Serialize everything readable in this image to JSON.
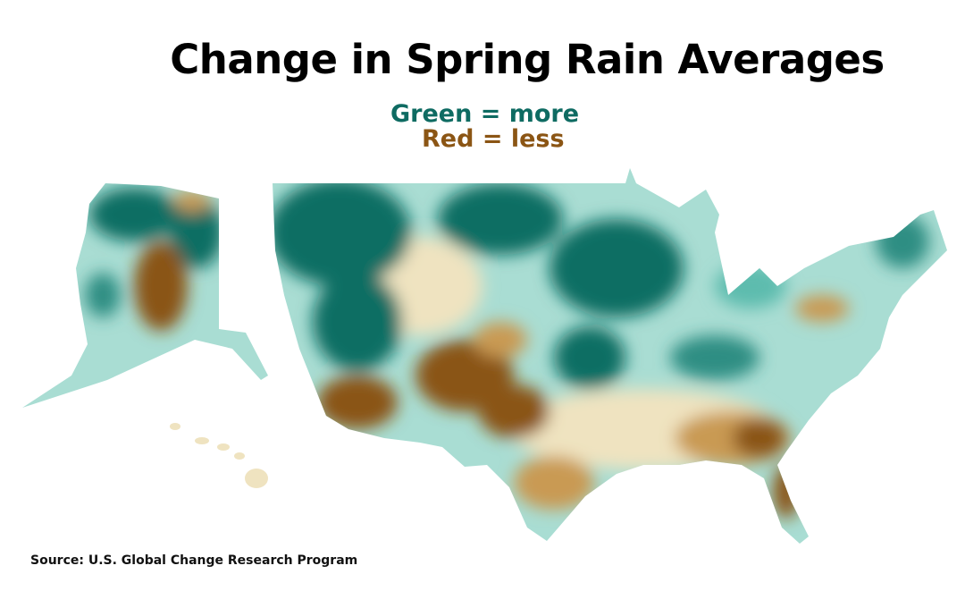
{
  "title": "Change in Spring Rain Averages",
  "legend": {
    "more": "Green = more",
    "less": "Red = less",
    "more_color": "#0e6b62",
    "less_color": "#8b5514"
  },
  "source": "Source: U.S. Global Change Research Program",
  "map": {
    "regions": [
      "Contiguous United States",
      "Alaska",
      "Hawaii"
    ],
    "colors": {
      "strong_more": "#0f6e64",
      "more": "#5dbcae",
      "slight_more": "#a9ddd3",
      "neutral": "#efe3c0",
      "less": "#c99a52",
      "strong_less": "#8a5514"
    }
  }
}
